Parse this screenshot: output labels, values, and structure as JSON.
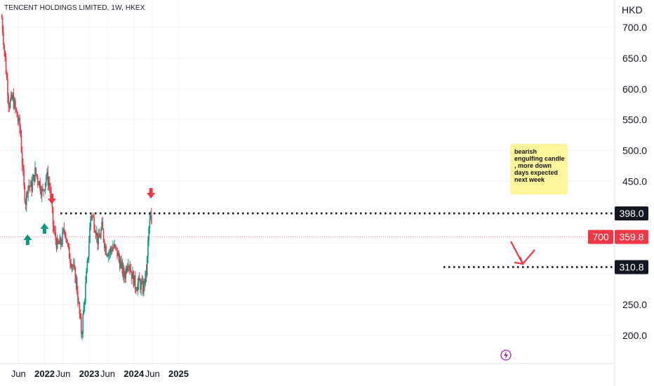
{
  "header": {
    "symbol_title": "TENCENT HOLDINGS LIMITED, 1W, HKEX",
    "currency": "HKD"
  },
  "chart_data": {
    "type": "candlestick",
    "interval": "1W",
    "y_axis": {
      "ticks": [
        "700.0",
        "650.0",
        "600.0",
        "550.0",
        "500.0",
        "450.0",
        "250.0",
        "200.0"
      ],
      "range": [
        160,
        735
      ]
    },
    "x_axis": {
      "ticks": [
        {
          "label": "Jun",
          "date": "2021-06-01",
          "bold": false
        },
        {
          "label": "2022",
          "date": "2022-01-01",
          "bold": true
        },
        {
          "label": "Jun",
          "date": "2022-06-01",
          "bold": false
        },
        {
          "label": "2023",
          "date": "2023-01-01",
          "bold": true
        },
        {
          "label": "Jun",
          "date": "2023-06-01",
          "bold": false
        },
        {
          "label": "2024",
          "date": "2024-01-01",
          "bold": true
        },
        {
          "label": "Jun",
          "date": "2024-06-01",
          "bold": false
        },
        {
          "label": "2025",
          "date": "2025-01-01",
          "bold": true
        }
      ]
    },
    "up_color": "#089981",
    "down_color": "#f23645",
    "price_path": [
      [
        "2021-01-15",
        715
      ],
      [
        "2021-02-15",
        640
      ],
      [
        "2021-03-15",
        575
      ],
      [
        "2021-04-15",
        585
      ],
      [
        "2021-05-15",
        560
      ],
      [
        "2021-06-15",
        535
      ],
      [
        "2021-07-15",
        440
      ],
      [
        "2021-08-01",
        415
      ],
      [
        "2021-08-15",
        445
      ],
      [
        "2021-09-15",
        440
      ],
      [
        "2021-10-15",
        465
      ],
      [
        "2021-11-15",
        450
      ],
      [
        "2021-12-15",
        430
      ],
      [
        "2022-01-15",
        460
      ],
      [
        "2022-02-15",
        440
      ],
      [
        "2022-03-15",
        370
      ],
      [
        "2022-04-15",
        345
      ],
      [
        "2022-05-15",
        350
      ],
      [
        "2022-06-15",
        375
      ],
      [
        "2022-07-15",
        335
      ],
      [
        "2022-08-15",
        315
      ],
      [
        "2022-09-15",
        290
      ],
      [
        "2022-10-31",
        200
      ],
      [
        "2022-11-15",
        240
      ],
      [
        "2022-12-15",
        310
      ],
      [
        "2023-01-15",
        400
      ],
      [
        "2023-02-15",
        380
      ],
      [
        "2023-03-15",
        350
      ],
      [
        "2023-04-15",
        375
      ],
      [
        "2023-05-15",
        340
      ],
      [
        "2023-06-15",
        335
      ],
      [
        "2023-07-15",
        345
      ],
      [
        "2023-08-15",
        335
      ],
      [
        "2023-09-15",
        315
      ],
      [
        "2023-10-15",
        295
      ],
      [
        "2023-11-15",
        325
      ],
      [
        "2023-12-15",
        300
      ],
      [
        "2024-01-15",
        280
      ],
      [
        "2024-02-15",
        285
      ],
      [
        "2024-03-15",
        275
      ],
      [
        "2024-04-15",
        305
      ],
      [
        "2024-05-01",
        370
      ],
      [
        "2024-05-20",
        395
      ],
      [
        "2024-05-27",
        360
      ]
    ],
    "levels": [
      {
        "price": 398.0,
        "label": "398.0"
      },
      {
        "price": 310.8,
        "label": "310.8"
      }
    ],
    "last_price": {
      "price": 359.8,
      "label": "359.8",
      "volume_label": "700",
      "color": "#f23645"
    },
    "annotation": {
      "text": "bearish engulfing candle , more down days expected next week",
      "background": "#fff59d"
    },
    "markers": [
      {
        "type": "up-arrow",
        "date": "2021-08-15",
        "color": "#089981"
      },
      {
        "type": "up-arrow",
        "date": "2021-12-31",
        "color": "#089981"
      },
      {
        "type": "down-arrow",
        "date": "2022-03-01",
        "color": "#f23645"
      },
      {
        "type": "down-arrow",
        "date": "2024-05-20",
        "color": "#f23645"
      }
    ],
    "grid": true,
    "projection_arrow_color": "#f23645"
  }
}
